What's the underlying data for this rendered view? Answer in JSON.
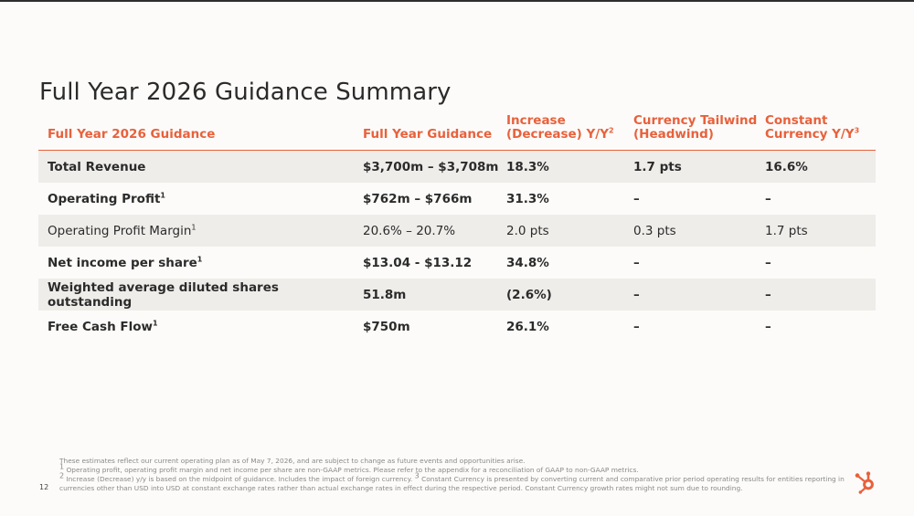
{
  "title": "Full Year 2026 Guidance Summary",
  "table": {
    "headers": [
      {
        "text": "Full Year 2026 Guidance",
        "sup": ""
      },
      {
        "text": "Full Year Guidance",
        "sup": ""
      },
      {
        "text": "Increase (Decrease) Y/Y",
        "sup": "2"
      },
      {
        "text": "Currency Tailwind (Headwind)",
        "sup": ""
      },
      {
        "text": "Constant Currency Y/Y",
        "sup": "3"
      }
    ],
    "rows": [
      {
        "label": "Total Revenue",
        "sup": "",
        "bold": true,
        "shaded": true,
        "values": [
          "$3,700m – $3,708m",
          "18.3%",
          "1.7 pts",
          "16.6%"
        ]
      },
      {
        "label": "Operating Profit",
        "sup": "1",
        "bold": true,
        "shaded": false,
        "values": [
          "$762m – $766m",
          "31.3%",
          "–",
          "–"
        ]
      },
      {
        "label": "Operating Profit Margin",
        "sup": "1",
        "bold": false,
        "shaded": true,
        "values": [
          "20.6% – 20.7%",
          "2.0 pts",
          "0.3 pts",
          "1.7 pts"
        ]
      },
      {
        "label": "Net income per share",
        "sup": "1",
        "bold": true,
        "shaded": false,
        "values": [
          "$13.04 - $13.12",
          "34.8%",
          "–",
          "–"
        ]
      },
      {
        "label": "Weighted average diluted shares outstanding",
        "sup": "",
        "bold": true,
        "shaded": true,
        "values": [
          "51.8m",
          "(2.6%)",
          "–",
          "–"
        ]
      },
      {
        "label": "Free Cash Flow",
        "sup": "1",
        "bold": true,
        "shaded": false,
        "values": [
          "$750m",
          "26.1%",
          "–",
          "–"
        ]
      }
    ]
  },
  "footnotes": {
    "line1": "These estimates reflect our current operating plan as of May 7, 2026, and are subject to change as future events and opportunities arise.",
    "line2_sup": "1",
    "line2": " Operating profit, operating profit margin and net income per share are non-GAAP metrics. Please refer to the appendix for a reconciliation of GAAP to non-GAAP metrics.",
    "line3_sup": "2",
    "line3a": " Increase (Decrease) y/y is based on the midpoint of guidance. Includes the impact of foreign currency. ",
    "line3_sup2": "3",
    "line3b": " Constant Currency is presented by converting current and comparative prior period operating results for entities reporting in currencies other than USD into USD at constant exchange rates rather than actual exchange rates in effect during the respective period. Constant Currency growth rates might not sum due to rounding."
  },
  "page_number": "12",
  "colors": {
    "accent": "#e8613c",
    "shade": "#efedea",
    "background": "#fcfbf9"
  },
  "logo_icon": "hubspot-sprocket-icon"
}
